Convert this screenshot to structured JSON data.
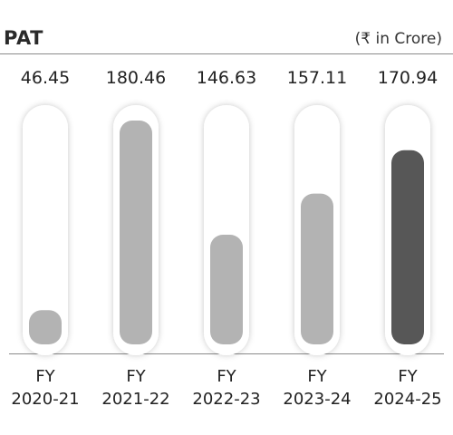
{
  "header": {
    "title": "PAT",
    "unit": "(₹ in Crore)"
  },
  "chart_data": {
    "type": "bar",
    "title": "PAT",
    "ylabel": "(₹ in Crore)",
    "categories": [
      [
        "FY",
        "2020-21"
      ],
      [
        "FY",
        "2021-22"
      ],
      [
        "FY",
        "2022-23"
      ],
      [
        "FY",
        "2023-24"
      ],
      [
        "FY",
        "2024-25"
      ]
    ],
    "values": [
      46.45,
      180.46,
      146.63,
      157.11,
      170.94
    ],
    "value_labels": [
      "46.45",
      "180.46",
      "146.63",
      "157.11",
      "170.94"
    ],
    "fill_fractions": [
      0.15,
      0.98,
      0.48,
      0.66,
      0.85
    ],
    "colors": {
      "bar": "#b3b3b3",
      "highlight_bar": "#575757",
      "track": "#ffffff",
      "track_shadow": "#d9d9d9"
    },
    "highlight_index": 4
  }
}
